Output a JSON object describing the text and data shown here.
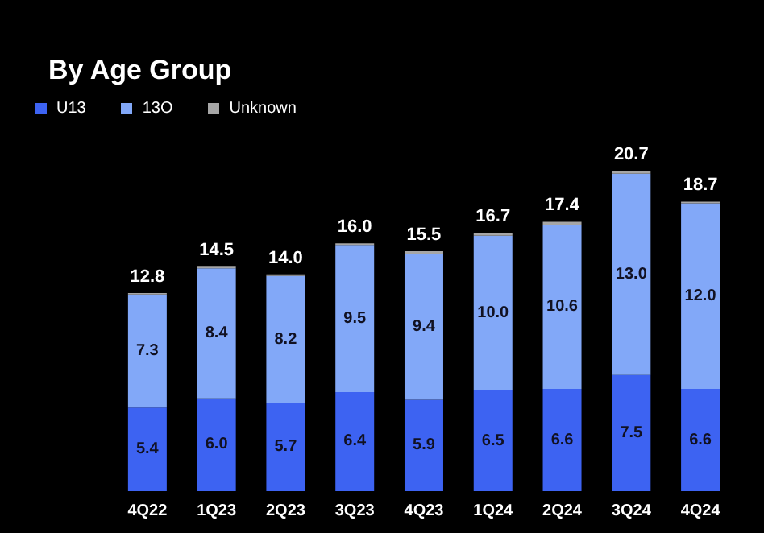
{
  "chart_data": {
    "type": "bar",
    "title": "By Age Group",
    "stacked": true,
    "legend": "top left",
    "categories": [
      "4Q22",
      "1Q23",
      "2Q23",
      "3Q23",
      "4Q23",
      "1Q24",
      "2Q24",
      "3Q24",
      "4Q24"
    ],
    "series": [
      {
        "name": "U13",
        "color": "#3d63f2",
        "values": [
          5.4,
          6.0,
          5.7,
          6.4,
          5.9,
          6.5,
          6.6,
          7.5,
          6.6
        ],
        "value_labels": [
          "5.4",
          "6.0",
          "5.7",
          "6.4",
          "5.9",
          "6.5",
          "6.6",
          "7.5",
          "6.6"
        ]
      },
      {
        "name": "13O",
        "color": "#82a8f8",
        "values": [
          7.3,
          8.4,
          8.2,
          9.5,
          9.4,
          10.0,
          10.6,
          13.0,
          12.0
        ],
        "value_labels": [
          "7.3",
          "8.4",
          "8.2",
          "9.5",
          "9.4",
          "10.0",
          "10.6",
          "13.0",
          "12.0"
        ]
      },
      {
        "name": "Unknown",
        "color": "#a6a6a6",
        "values": [
          0.1,
          0.1,
          0.1,
          0.1,
          0.2,
          0.2,
          0.2,
          0.2,
          0.1
        ]
      }
    ],
    "totals": [
      "12.8",
      "14.5",
      "14.0",
      "16.0",
      "15.5",
      "16.7",
      "17.4",
      "20.7",
      "18.7"
    ]
  }
}
